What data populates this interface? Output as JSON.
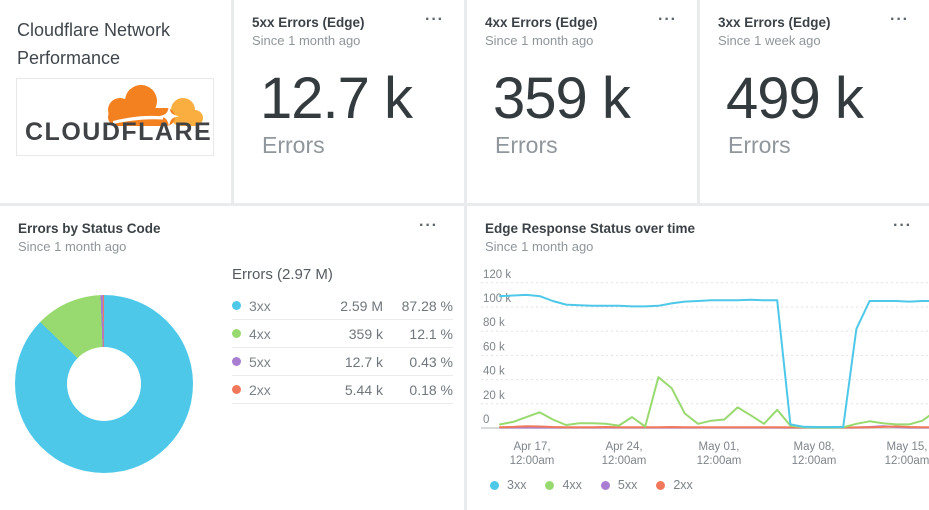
{
  "icons": {
    "ellipsis": "···"
  },
  "header_card": {
    "title_line1": "Cloudflare Network",
    "title_line2": "Performance",
    "logo_text": "CLOUDFLARE"
  },
  "stat_cards": [
    {
      "title": "5xx Errors (Edge)",
      "subtitle": "Since 1 month ago",
      "value": "12.7 k",
      "unit_label": "Errors"
    },
    {
      "title": "4xx Errors (Edge)",
      "subtitle": "Since 1 month ago",
      "value": "359 k",
      "unit_label": "Errors"
    },
    {
      "title": "3xx Errors (Edge)",
      "subtitle": "Since 1 week ago",
      "value": "499 k",
      "unit_label": "Errors"
    }
  ],
  "donut_card": {
    "title": "Errors by Status Code",
    "subtitle": "Since 1 month ago",
    "legend_header": "Errors (2.97 M)",
    "rows": [
      {
        "label": "3xx",
        "value": "2.59 M",
        "percent": "87.28 %",
        "color": "#4EC8E9"
      },
      {
        "label": "4xx",
        "value": "359 k",
        "percent": "12.1 %",
        "color": "#99DA70"
      },
      {
        "label": "5xx",
        "value": "12.7 k",
        "percent": "0.43 %",
        "color": "#A87DD2"
      },
      {
        "label": "2xx",
        "value": "5.44 k",
        "percent": "0.18 %",
        "color": "#F0795C"
      }
    ]
  },
  "chart_card": {
    "title": "Edge Response Status over time",
    "subtitle": "Since 1 month ago",
    "legend": [
      {
        "label": "3xx",
        "color": "#4EC8E9"
      },
      {
        "label": "4xx",
        "color": "#99DA70"
      },
      {
        "label": "5xx",
        "color": "#A87DD2"
      },
      {
        "label": "2xx",
        "color": "#F0795C"
      }
    ]
  },
  "chart_data": [
    {
      "type": "pie",
      "title": "Errors by Status Code",
      "subtitle": "Since 1 month ago",
      "total_label": "Errors (2.97 M)",
      "total_value": 2970000,
      "slices": [
        {
          "label": "3xx",
          "value": 2590000,
          "value_label": "2.59 M",
          "percent": 87.28,
          "color": "#4EC8E9"
        },
        {
          "label": "4xx",
          "value": 359000,
          "value_label": "359 k",
          "percent": 12.1,
          "color": "#99DA70"
        },
        {
          "label": "5xx",
          "value": 12700,
          "value_label": "12.7 k",
          "percent": 0.43,
          "color": "#A87DD2"
        },
        {
          "label": "2xx",
          "value": 5440,
          "value_label": "5.44 k",
          "percent": 0.18,
          "color": "#F0795C"
        }
      ]
    },
    {
      "type": "line",
      "title": "Edge Response Status over time",
      "subtitle": "Since 1 month ago",
      "ylim_k": [
        0,
        120
      ],
      "grid": "dotted-horizontal",
      "legend_position": "bottom-left",
      "y_ticks": [
        {
          "label": "120 k",
          "value": 120
        },
        {
          "label": "100 k",
          "value": 100
        },
        {
          "label": "80 k",
          "value": 80
        },
        {
          "label": "60 k",
          "value": 60
        },
        {
          "label": "40 k",
          "value": 40
        },
        {
          "label": "20 k",
          "value": 20
        },
        {
          "label": "0",
          "value": 0
        }
      ],
      "x_ticks": [
        {
          "line1": "Apr 17,",
          "line2": "12:00am"
        },
        {
          "line1": "Apr 24,",
          "line2": "12:00am"
        },
        {
          "line1": "May 01,",
          "line2": "12:00am"
        },
        {
          "line1": "May 08,",
          "line2": "12:00am"
        },
        {
          "line1": "May 15,",
          "line2": "12:00am"
        }
      ],
      "series": [
        {
          "name": "5xx",
          "color": "#A87DD2",
          "values_k": [
            0.4,
            0.4,
            0.4,
            0.4,
            0.4,
            0.4,
            0.4,
            0.4,
            0.4,
            0.4,
            0.4,
            0.4,
            0.4,
            0.4,
            0.4,
            0.4,
            0.4,
            0.4,
            0.4,
            0.4,
            0.4,
            0.4,
            0.3,
            0.3,
            0.3,
            0.3,
            0.3,
            0.4,
            0.8,
            1.4,
            0.8,
            0.4,
            0.4,
            0.4
          ]
        },
        {
          "name": "2xx",
          "color": "#F0795C",
          "values_k": [
            0.7,
            0.9,
            1.4,
            1.2,
            0.8,
            0.7,
            0.7,
            0.7,
            0.8,
            0.7,
            0.7,
            0.7,
            0.7,
            0.8,
            0.7,
            0.7,
            0.7,
            0.7,
            0.7,
            0.7,
            0.7,
            0.7,
            0.5,
            0.4,
            0.4,
            0.4,
            0.4,
            0.5,
            0.7,
            0.9,
            1.2,
            0.8,
            0.7,
            0.7
          ]
        },
        {
          "name": "4xx",
          "color": "#99DA70",
          "values_k": [
            3,
            5,
            9,
            13,
            7,
            2.5,
            4,
            4,
            3.5,
            2,
            9,
            1.2,
            42,
            33,
            12,
            3.5,
            6,
            7,
            17,
            10.5,
            3.5,
            15,
            2,
            0.6,
            0.3,
            0.3,
            0.6,
            3.5,
            5.5,
            4,
            3,
            3,
            6,
            14
          ]
        },
        {
          "name": "3xx",
          "color": "#4EC8E9",
          "values_k": [
            109,
            109.5,
            110,
            109,
            105,
            102,
            101.5,
            101,
            101,
            101,
            100.5,
            100.5,
            101,
            103,
            104.5,
            105,
            105.5,
            105.5,
            105.5,
            106,
            105.5,
            105.5,
            3,
            1,
            0.8,
            0.8,
            0.8,
            82,
            105,
            105,
            105,
            104.5,
            105,
            105
          ]
        }
      ]
    }
  ]
}
